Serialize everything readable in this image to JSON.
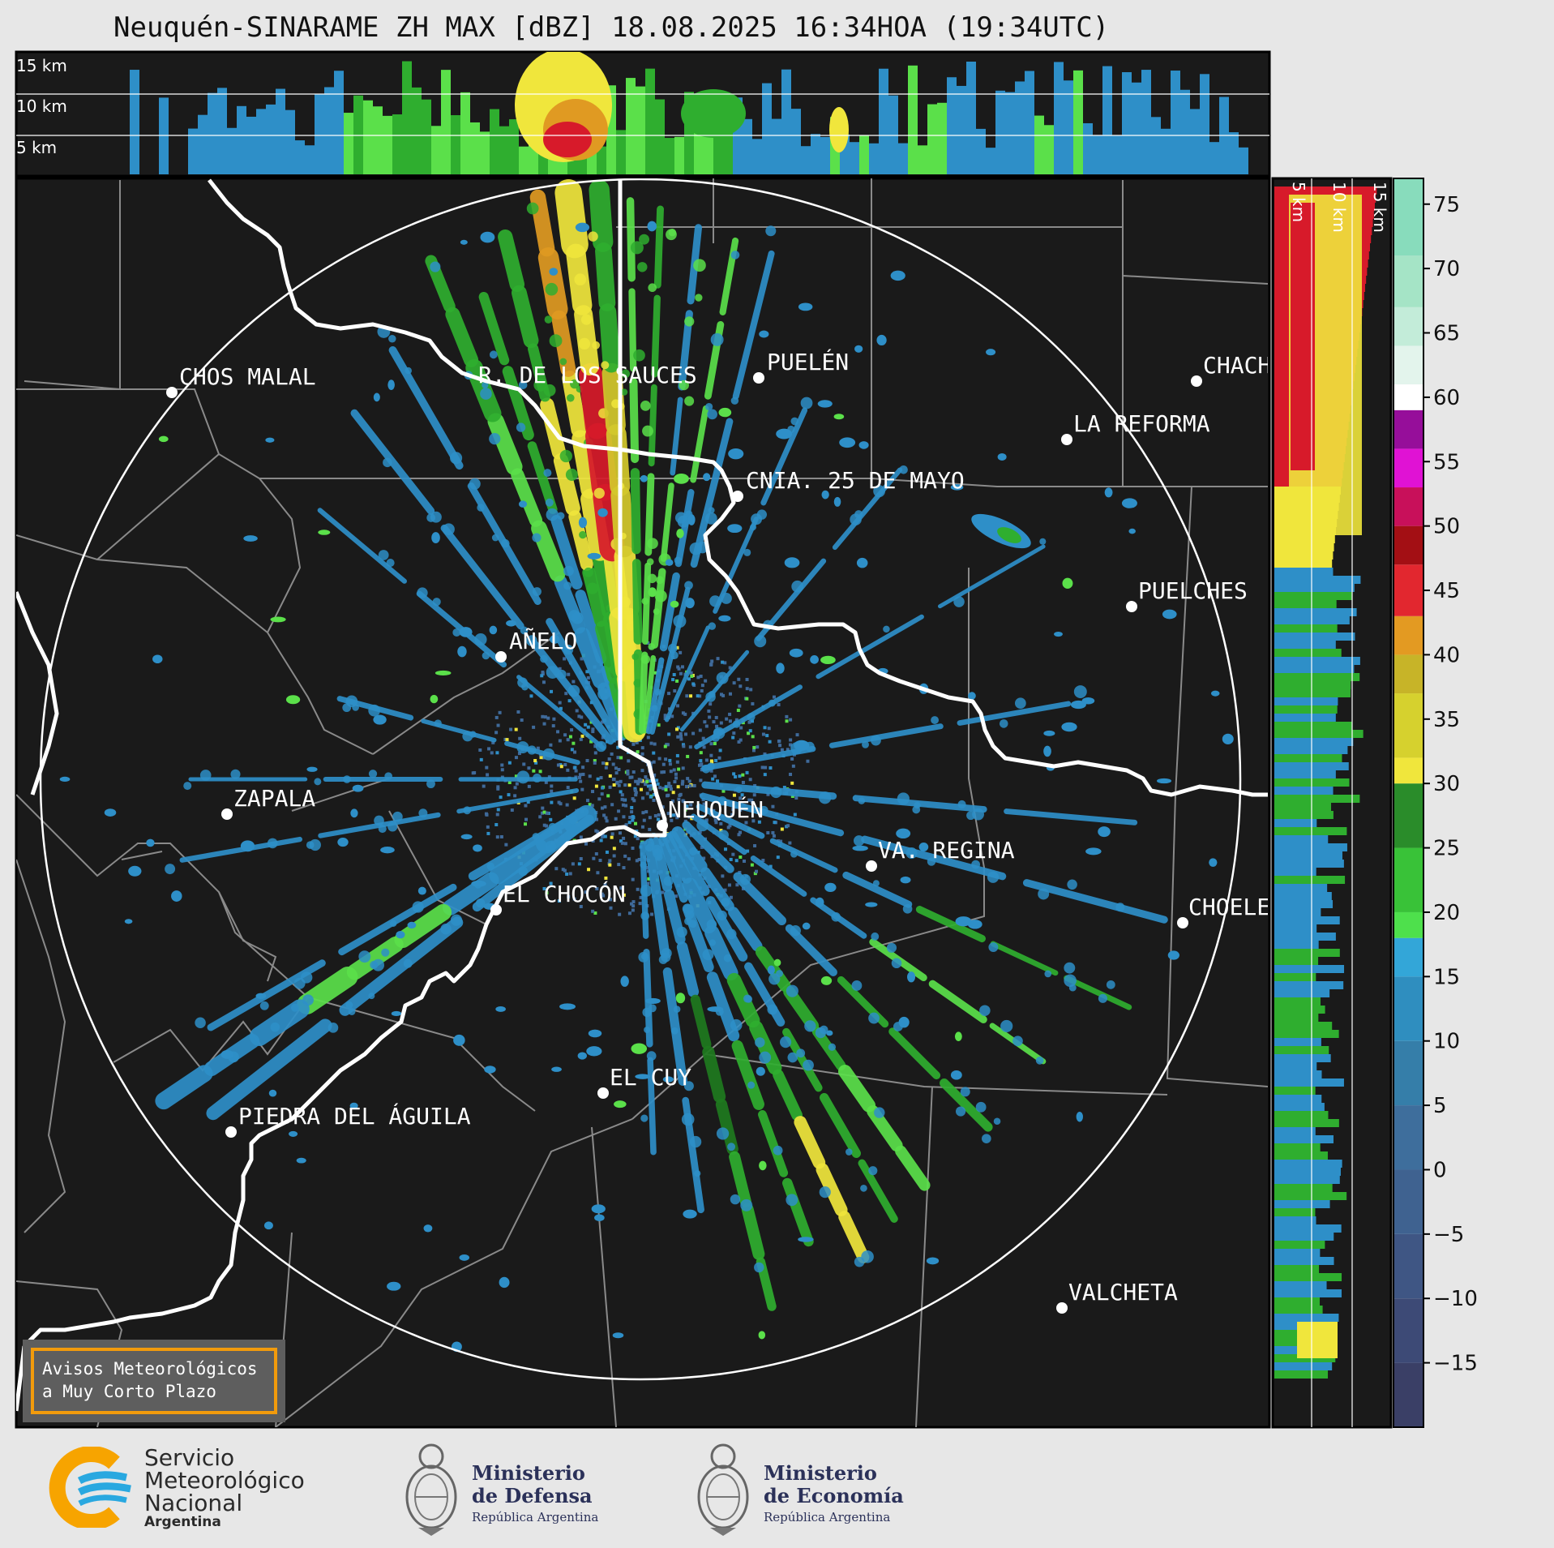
{
  "title": "Neuquén-SINARAME ZH MAX [dBZ] 18.08.2025 16:34HOA (19:34UTC)",
  "top_panel": {
    "altitude_labels": [
      "15 km",
      "10 km",
      "5 km"
    ]
  },
  "side_panel": {
    "altitude_labels": [
      "5 km",
      "10 km",
      "15 km"
    ]
  },
  "cities": [
    {
      "name": "CHOS MALAL"
    },
    {
      "name": "R. DE LOS SAUCES"
    },
    {
      "name": "PUELÉN"
    },
    {
      "name": "CHACH"
    },
    {
      "name": "LA REFORMA"
    },
    {
      "name": "CNIA. 25 DE MAYO"
    },
    {
      "name": "PUELCHES"
    },
    {
      "name": "AÑELO"
    },
    {
      "name": "ZAPALA"
    },
    {
      "name": "NEUQUÉN"
    },
    {
      "name": "VA. REGINA"
    },
    {
      "name": "EL CHOCÓN"
    },
    {
      "name": "CHOELE"
    },
    {
      "name": "EL CUY"
    },
    {
      "name": "PIEDRA DEL ÁGUILA"
    },
    {
      "name": "VALCHETA"
    }
  ],
  "colorbar": {
    "unit": "dBZ",
    "ticks": [
      "75",
      "70",
      "65",
      "60",
      "55",
      "50",
      "45",
      "40",
      "35",
      "30",
      "25",
      "20",
      "15",
      "10",
      "5",
      "0",
      "−5",
      "−10",
      "−15"
    ],
    "range": [
      -20,
      77
    ]
  },
  "notice": {
    "line1": "Avisos Meteorológicos",
    "line2": "a Muy Corto Plazo"
  },
  "logos": {
    "smn": {
      "line1": "Servicio",
      "line2": "Meteorológico",
      "line3": "Nacional",
      "line4": "Argentina"
    },
    "defensa": {
      "line1": "Ministerio",
      "line2": "de Defensa",
      "line3": "República Argentina"
    },
    "economia": {
      "line1": "Ministerio",
      "line2": "de Economía",
      "line3": "República Argentina"
    }
  }
}
